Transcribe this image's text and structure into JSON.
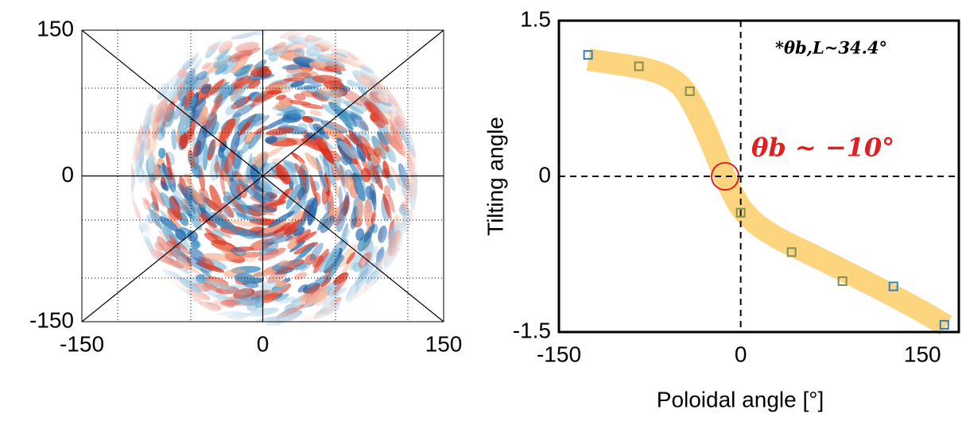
{
  "chart_data": [
    {
      "type": "heatmap",
      "xlim": [
        -150,
        150
      ],
      "ylim": [
        -150,
        150
      ],
      "xticks": [
        -150,
        0,
        150
      ],
      "yticks": [
        -150,
        0,
        150
      ]
    },
    {
      "type": "scatter",
      "x_label": "Poloidal angle [°]",
      "y_label": "Tilting angle",
      "xlim": [
        -150,
        180
      ],
      "ylim": [
        -1.5,
        1.5
      ],
      "xticks": [
        -150,
        0,
        150
      ],
      "yticks": [
        {
          "value": -1.5,
          "label": "-1.5"
        },
        0,
        {
          "value": 1.5,
          "label": "1.5"
        }
      ],
      "annotations": [
        "θb ~ −10°",
        "*θb,L~34.4°"
      ],
      "series": [
        {
          "x": [
            -126,
            -84,
            -42,
            0,
            42,
            84,
            126,
            168
          ],
          "values": [
            1.17,
            1.06,
            0.82,
            -0.35,
            -0.73,
            -1.01,
            -1.06,
            -1.43
          ],
          "colors": [
            "#2f7fbf",
            "#7f8f4f",
            "#7f8f4f",
            "#7f8f4f",
            "#7f8f4f",
            "#7f8f4f",
            "#2f7fbf",
            "#2f7fbf"
          ]
        }
      ]
    }
  ]
}
